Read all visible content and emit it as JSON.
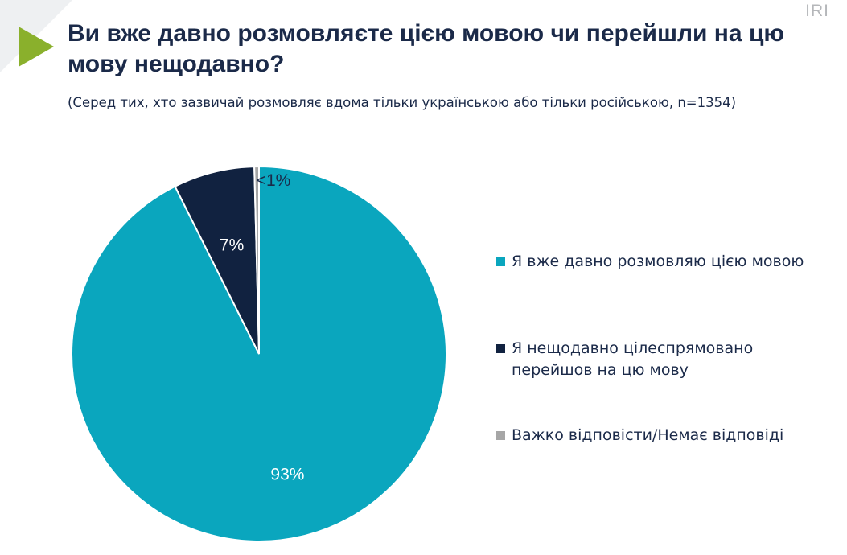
{
  "header": {
    "title": "Ви вже давно розмовляєте цією мовою чи перейшли на цю мову нещодавно?",
    "subtitle": "(Серед тих, хто зазвичай розмовляє вдома тільки українською або тільки російською, n=1354)",
    "logo": "IRI",
    "arrow_color": "#8ab02c"
  },
  "chart_data": {
    "type": "pie",
    "title": "Ви вже давно розмовляєте цією мовою чи перейшли на цю мову нещодавно?",
    "categories": [
      "Я вже давно розмовляю цією мовою",
      "Я нещодавно цілеспрямовано перейшов на цю мову",
      "Важко відповісти/Немає відповіді"
    ],
    "values": [
      92.6,
      7.0,
      0.4
    ],
    "data_labels": [
      "93%",
      "7%",
      "<1%"
    ],
    "colors": [
      "#0aa6be",
      "#112240",
      "#a6a6a6"
    ],
    "legend_position": "right"
  },
  "legend": [
    {
      "label": "Я вже давно розмовляю цією мовою",
      "color": "#0aa6be"
    },
    {
      "label": "Я нещодавно цілеспрямовано\nперейшов на цю мову",
      "color": "#112240"
    },
    {
      "label": "Важко відповісти/Немає відповіді",
      "color": "#a6a6a6"
    }
  ]
}
